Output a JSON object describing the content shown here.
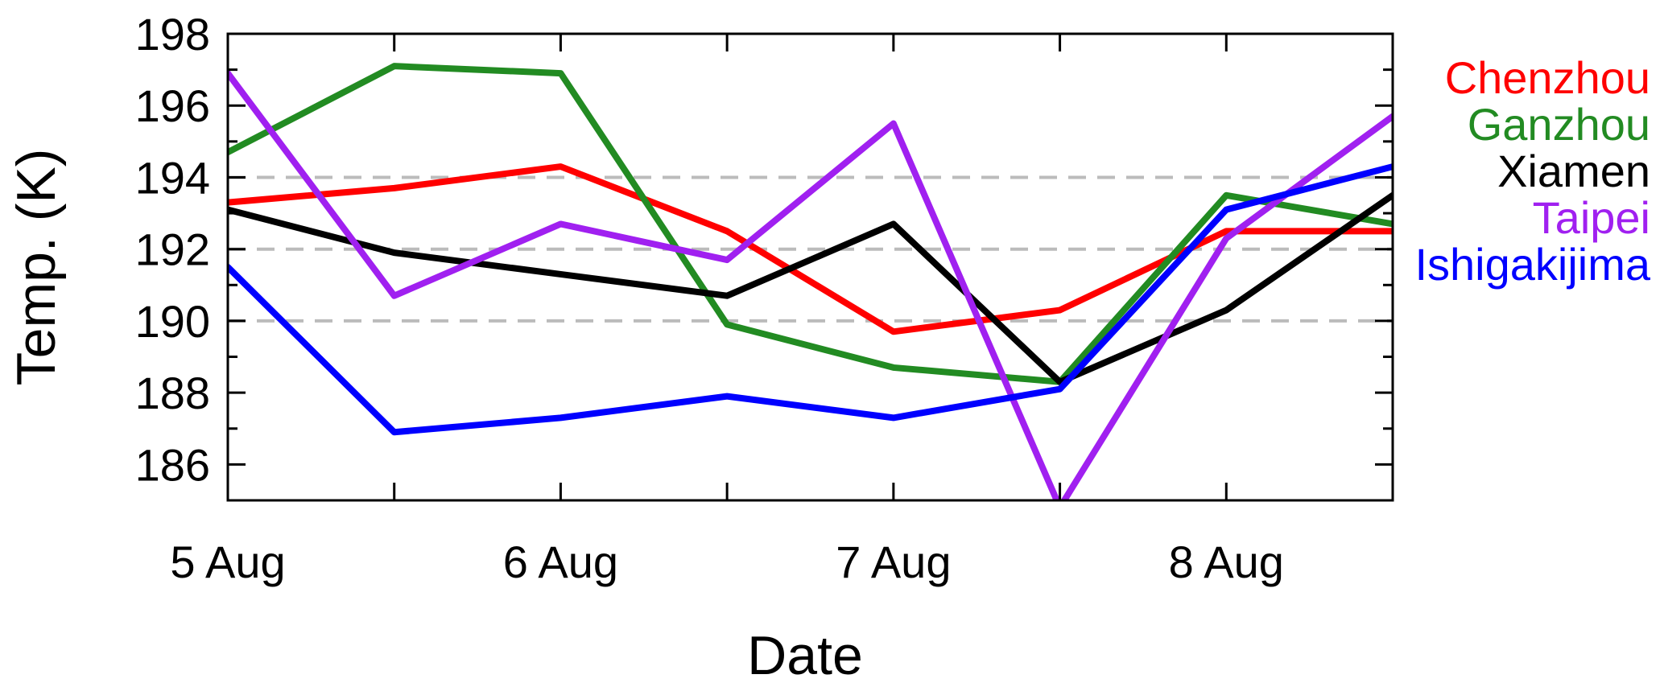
{
  "chart_data": {
    "type": "line",
    "title": "",
    "xlabel": "Date",
    "ylabel": "Temp. (K)",
    "x_tick_labels": [
      "5 Aug",
      "6 Aug",
      "7 Aug",
      "8 Aug"
    ],
    "x_tick_values": [
      0,
      1,
      2,
      3
    ],
    "x_minor_ticks": [
      0.5,
      1.5,
      2.5
    ],
    "xlim": [
      0,
      3.5
    ],
    "ylim": [
      185,
      198
    ],
    "y_ticks": [
      186,
      188,
      190,
      192,
      194,
      196,
      198
    ],
    "reference_lines_y": [
      190,
      192,
      194
    ],
    "reference_line_color": "#bbbbbb",
    "legend_position": "outside-right",
    "x": [
      0,
      0.5,
      1,
      1.5,
      2,
      2.5,
      3,
      3.5
    ],
    "series": [
      {
        "name": "Chenzhou",
        "color": "#ff0000",
        "values": [
          193.3,
          193.7,
          194.3,
          192.5,
          189.7,
          190.3,
          192.5,
          192.5
        ]
      },
      {
        "name": "Ganzhou",
        "color": "#228b22",
        "values": [
          194.7,
          197.1,
          196.9,
          189.9,
          188.7,
          188.3,
          193.5,
          192.7
        ]
      },
      {
        "name": "Xiamen",
        "color": "#000000",
        "values": [
          193.1,
          191.9,
          191.3,
          190.7,
          192.7,
          188.3,
          190.3,
          193.5
        ]
      },
      {
        "name": "Taipei",
        "color": "#a020f0",
        "values": [
          196.9,
          190.7,
          192.7,
          191.7,
          195.5,
          184.8,
          192.3,
          195.7
        ]
      },
      {
        "name": "Ishigakijima",
        "color": "#0000ff",
        "values": [
          191.5,
          186.9,
          187.3,
          187.9,
          187.3,
          188.1,
          193.1,
          194.3
        ]
      }
    ]
  }
}
